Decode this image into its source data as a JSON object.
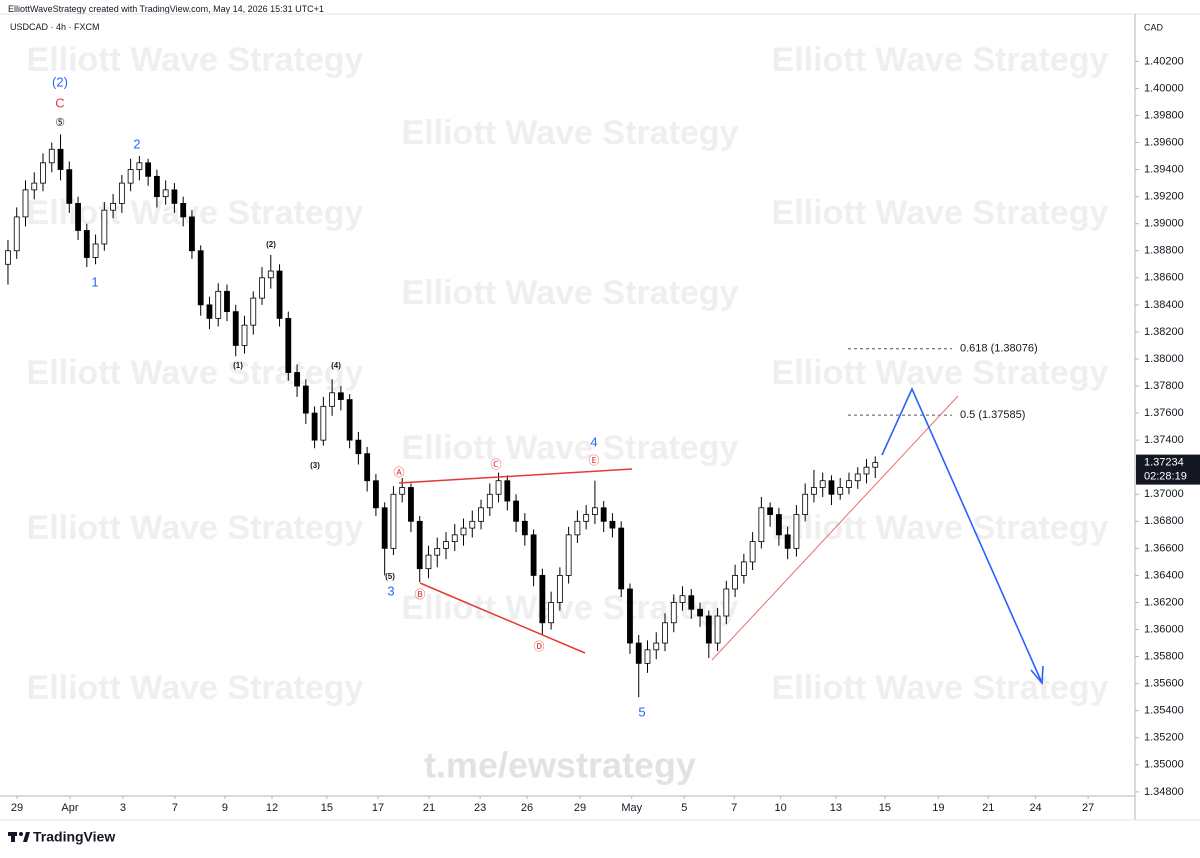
{
  "header": {
    "credit": "ElliottWaveStrategy created with TradingView.com, May 14, 2026 15:31 UTC+1",
    "symbol": "USDCAD · 4h · FXCM"
  },
  "footer": {
    "brand": "TradingView"
  },
  "chart_data": {
    "type": "candlestick",
    "currency": "CAD",
    "countdown": "02:28:19",
    "watermark": "Elliott Wave Strategy",
    "channel": "t.me/ewstrategy",
    "up_color": "#ffffff",
    "down_color": "#000000",
    "outline_color": "#000000",
    "grid": false,
    "open": [
      1.387,
      1.388,
      1.3905,
      1.3925,
      1.393,
      1.3945,
      1.3955,
      1.394,
      1.3915,
      1.3895,
      1.3875,
      1.3885,
      1.391,
      1.3915,
      1.393,
      1.394,
      1.3945,
      1.3935,
      1.392,
      1.3925,
      1.3915,
      1.3905,
      1.388,
      1.384,
      1.383,
      1.385,
      1.3835,
      1.381,
      1.3825,
      1.3845,
      1.386,
      1.3865,
      1.383,
      1.379,
      1.378,
      1.376,
      1.374,
      1.3765,
      1.3775,
      1.377,
      1.374,
      1.373,
      1.371,
      1.369,
      1.366,
      1.37,
      1.3705,
      1.368,
      1.3645,
      1.3655,
      1.366,
      1.3665,
      1.367,
      1.3675,
      1.368,
      1.369,
      1.37,
      1.371,
      1.3695,
      1.368,
      1.367,
      1.364,
      1.3605,
      1.362,
      1.364,
      1.367,
      1.368,
      1.3685,
      1.369,
      1.368,
      1.3675,
      1.363,
      1.359,
      1.3575,
      1.3585,
      1.359,
      1.3605,
      1.362,
      1.3625,
      1.3615,
      1.361,
      1.359,
      1.361,
      1.363,
      1.364,
      1.365,
      1.3665,
      1.369,
      1.3685,
      1.367,
      1.366,
      1.3685,
      1.37,
      1.3705,
      1.371,
      1.37,
      1.3705,
      1.371,
      1.3715,
      1.372
    ],
    "high": [
      1.3888,
      1.3912,
      1.3932,
      1.3938,
      1.3952,
      1.396,
      1.3966,
      1.3946,
      1.392,
      1.39,
      1.3892,
      1.3916,
      1.3922,
      1.3936,
      1.3948,
      1.395,
      1.3948,
      1.394,
      1.3932,
      1.393,
      1.392,
      1.391,
      1.3884,
      1.3846,
      1.3856,
      1.3855,
      1.384,
      1.3832,
      1.385,
      1.3868,
      1.3877,
      1.387,
      1.3835,
      1.3796,
      1.3785,
      1.3765,
      1.3772,
      1.3785,
      1.378,
      1.3774,
      1.3746,
      1.3735,
      1.3715,
      1.3694,
      1.3706,
      1.3712,
      1.3708,
      1.3684,
      1.3662,
      1.3668,
      1.3672,
      1.3678,
      1.3682,
      1.3688,
      1.3696,
      1.3708,
      1.3716,
      1.3714,
      1.37,
      1.3686,
      1.3674,
      1.3645,
      1.3628,
      1.3646,
      1.3676,
      1.3688,
      1.3692,
      1.371,
      1.3695,
      1.3686,
      1.368,
      1.3634,
      1.3596,
      1.3592,
      1.3598,
      1.3612,
      1.3626,
      1.3632,
      1.363,
      1.362,
      1.3614,
      1.3616,
      1.3636,
      1.3648,
      1.3656,
      1.3672,
      1.3698,
      1.3694,
      1.369,
      1.3676,
      1.3692,
      1.3708,
      1.3718,
      1.3716,
      1.3714,
      1.3712,
      1.3716,
      1.372,
      1.3726,
      1.3728
    ],
    "low": [
      1.3855,
      1.3874,
      1.3898,
      1.3918,
      1.3924,
      1.3938,
      1.3932,
      1.3908,
      1.3888,
      1.3868,
      1.387,
      1.388,
      1.3904,
      1.3908,
      1.3924,
      1.3932,
      1.3928,
      1.3912,
      1.3914,
      1.3908,
      1.3898,
      1.3874,
      1.3832,
      1.3822,
      1.3824,
      1.3828,
      1.3802,
      1.3804,
      1.3818,
      1.384,
      1.3852,
      1.3824,
      1.3784,
      1.3772,
      1.3752,
      1.3734,
      1.3736,
      1.3758,
      1.3762,
      1.3734,
      1.3722,
      1.3702,
      1.3684,
      1.364,
      1.3655,
      1.3694,
      1.3672,
      1.3635,
      1.3638,
      1.3646,
      1.3652,
      1.3658,
      1.3662,
      1.3668,
      1.3674,
      1.3684,
      1.3694,
      1.3688,
      1.3672,
      1.3662,
      1.3632,
      1.3596,
      1.36,
      1.3614,
      1.3634,
      1.3664,
      1.3674,
      1.3678,
      1.3672,
      1.3668,
      1.3624,
      1.3582,
      1.355,
      1.3568,
      1.3578,
      1.3584,
      1.3598,
      1.3614,
      1.3608,
      1.3602,
      1.3579,
      1.3584,
      1.3604,
      1.3624,
      1.3634,
      1.3644,
      1.366,
      1.3676,
      1.3662,
      1.3652,
      1.3654,
      1.368,
      1.3694,
      1.3698,
      1.3692,
      1.3696,
      1.37,
      1.3704,
      1.3708,
      1.3712
    ],
    "close": [
      1.388,
      1.3905,
      1.3925,
      1.393,
      1.3945,
      1.3955,
      1.394,
      1.3915,
      1.3895,
      1.3875,
      1.3885,
      1.391,
      1.3915,
      1.393,
      1.394,
      1.3945,
      1.3935,
      1.392,
      1.3925,
      1.3915,
      1.3905,
      1.388,
      1.384,
      1.383,
      1.385,
      1.3835,
      1.381,
      1.3825,
      1.3845,
      1.386,
      1.3865,
      1.383,
      1.379,
      1.378,
      1.376,
      1.374,
      1.3765,
      1.3775,
      1.377,
      1.374,
      1.373,
      1.371,
      1.369,
      1.366,
      1.37,
      1.3705,
      1.368,
      1.3645,
      1.3655,
      1.366,
      1.3665,
      1.367,
      1.3675,
      1.368,
      1.369,
      1.37,
      1.371,
      1.3695,
      1.368,
      1.367,
      1.364,
      1.3605,
      1.362,
      1.364,
      1.367,
      1.368,
      1.3685,
      1.369,
      1.368,
      1.3675,
      1.363,
      1.359,
      1.3575,
      1.3585,
      1.359,
      1.3605,
      1.362,
      1.3625,
      1.3615,
      1.361,
      1.359,
      1.361,
      1.363,
      1.364,
      1.365,
      1.3665,
      1.369,
      1.3685,
      1.367,
      1.366,
      1.3685,
      1.37,
      1.3705,
      1.371,
      1.37,
      1.3705,
      1.371,
      1.3715,
      1.372,
      1.37234
    ],
    "xlim": [
      -0.91,
      128.65
    ],
    "xticks": [
      {
        "value": 1.03,
        "label": "29"
      },
      {
        "value": 7.08,
        "label": "Apr"
      },
      {
        "value": 13.13,
        "label": "3"
      },
      {
        "value": 19.06,
        "label": "7"
      },
      {
        "value": 24.77,
        "label": "9"
      },
      {
        "value": 30.14,
        "label": "12"
      },
      {
        "value": 36.4,
        "label": "15"
      },
      {
        "value": 42.24,
        "label": "17"
      },
      {
        "value": 48.06,
        "label": "21"
      },
      {
        "value": 53.9,
        "label": "23"
      },
      {
        "value": 59.25,
        "label": "26"
      },
      {
        "value": 65.3,
        "label": "29"
      },
      {
        "value": 71.2,
        "label": "May"
      },
      {
        "value": 77.2,
        "label": "5"
      },
      {
        "value": 82.9,
        "label": "7"
      },
      {
        "value": 88.2,
        "label": "10"
      },
      {
        "value": 94.5,
        "label": "13"
      },
      {
        "value": 100.1,
        "label": "15"
      },
      {
        "value": 106.2,
        "label": "19"
      },
      {
        "value": 111.9,
        "label": "21"
      },
      {
        "value": 117.3,
        "label": "24"
      },
      {
        "value": 123.3,
        "label": "27"
      }
    ],
    "ylim": [
      1.3474,
      1.4055
    ],
    "yticks": [
      {
        "value": 1.402,
        "label": "1.40200"
      },
      {
        "value": 1.4,
        "label": "1.40000"
      },
      {
        "value": 1.398,
        "label": "1.39800"
      },
      {
        "value": 1.396,
        "label": "1.39600"
      },
      {
        "value": 1.394,
        "label": "1.39400"
      },
      {
        "value": 1.392,
        "label": "1.39200"
      },
      {
        "value": 1.39,
        "label": "1.39000"
      },
      {
        "value": 1.388,
        "label": "1.38800"
      },
      {
        "value": 1.386,
        "label": "1.38600"
      },
      {
        "value": 1.384,
        "label": "1.38400"
      },
      {
        "value": 1.382,
        "label": "1.38200"
      },
      {
        "value": 1.38,
        "label": "1.38000"
      },
      {
        "value": 1.378,
        "label": "1.37800"
      },
      {
        "value": 1.376,
        "label": "1.37600"
      },
      {
        "value": 1.374,
        "label": "1.37400"
      },
      {
        "value": 1.372,
        "label": "1.37200"
      },
      {
        "value": 1.37,
        "label": "1.37000"
      },
      {
        "value": 1.368,
        "label": "1.36800"
      },
      {
        "value": 1.366,
        "label": "1.36600"
      },
      {
        "value": 1.364,
        "label": "1.36400"
      },
      {
        "value": 1.362,
        "label": "1.36200"
      },
      {
        "value": 1.36,
        "label": "1.36000"
      },
      {
        "value": 1.358,
        "label": "1.35800"
      },
      {
        "value": 1.356,
        "label": "1.35600"
      },
      {
        "value": 1.354,
        "label": "1.35400"
      },
      {
        "value": 1.352,
        "label": "1.35200"
      },
      {
        "value": 1.35,
        "label": "1.35000"
      },
      {
        "value": 1.348,
        "label": "1.34800"
      }
    ],
    "fib_levels": [
      {
        "value": 1.38076,
        "label": "0.618 (1.38076)"
      },
      {
        "value": 1.37585,
        "label": "0.5 (1.37585)"
      }
    ],
    "wave_labels": [
      {
        "text": "(2)",
        "color": "#2962ff"
      },
      {
        "text": "C",
        "color": "#e53935"
      },
      {
        "text": "⑤",
        "color": "#131722"
      },
      {
        "text": "2",
        "color": "#2962ff"
      },
      {
        "text": "1",
        "color": "#2962ff"
      },
      {
        "text": "(2)",
        "color": "#131722"
      },
      {
        "text": "(1)",
        "color": "#131722"
      },
      {
        "text": "(3)",
        "color": "#131722"
      },
      {
        "text": "(4)",
        "color": "#131722"
      },
      {
        "text": "(5)",
        "color": "#131722"
      },
      {
        "text": "3",
        "color": "#2962ff"
      },
      {
        "text": "Ⓐ",
        "color": "#e53935"
      },
      {
        "text": "Ⓑ",
        "color": "#e53935"
      },
      {
        "text": "Ⓒ",
        "color": "#e53935"
      },
      {
        "text": "Ⓓ",
        "color": "#e53935"
      },
      {
        "text": "Ⓔ",
        "color": "#e53935"
      },
      {
        "text": "4",
        "color": "#2962ff"
      },
      {
        "text": "5",
        "color": "#2962ff"
      }
    ]
  }
}
